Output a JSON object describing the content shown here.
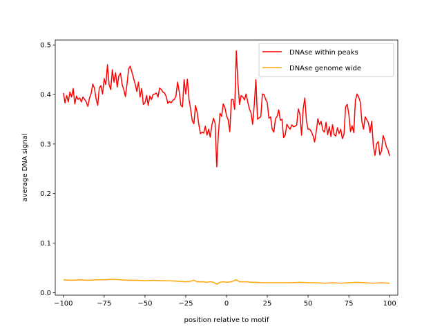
{
  "chart_data": {
    "type": "line",
    "title": "",
    "xlabel": "position relative to motif",
    "ylabel": "average DNA signal",
    "xlim": [
      -105,
      105
    ],
    "ylim": [
      -0.005,
      0.51
    ],
    "xticks": [
      -100,
      -75,
      -50,
      -25,
      0,
      25,
      50,
      75,
      100
    ],
    "yticks": [
      0.0,
      0.1,
      0.2,
      0.3,
      0.4,
      0.5
    ],
    "xtick_labels": [
      "−100",
      "−75",
      "−50",
      "−25",
      "0",
      "25",
      "50",
      "75",
      "100"
    ],
    "ytick_labels": [
      "0.0",
      "0.1",
      "0.2",
      "0.3",
      "0.4",
      "0.5"
    ],
    "grid": false,
    "legend_position": "top-right",
    "series": [
      {
        "name": "DNAse within peaks",
        "color": "#ff0000",
        "points": [
          [
            -100,
            0.403
          ],
          [
            -99,
            0.383
          ],
          [
            -98,
            0.398
          ],
          [
            -97,
            0.385
          ],
          [
            -96,
            0.405
          ],
          [
            -95,
            0.395
          ],
          [
            -94,
            0.412
          ],
          [
            -93,
            0.381
          ],
          [
            -92,
            0.397
          ],
          [
            -91,
            0.39
          ],
          [
            -90,
            0.393
          ],
          [
            -89,
            0.385
          ],
          [
            -88,
            0.395
          ],
          [
            -87,
            0.39
          ],
          [
            -86,
            0.385
          ],
          [
            -85,
            0.376
          ],
          [
            -84,
            0.393
          ],
          [
            -83,
            0.402
          ],
          [
            -82,
            0.421
          ],
          [
            -81,
            0.413
          ],
          [
            -80,
            0.392
          ],
          [
            -79,
            0.378
          ],
          [
            -78,
            0.413
          ],
          [
            -77,
            0.418
          ],
          [
            -76,
            0.401
          ],
          [
            -75,
            0.432
          ],
          [
            -74,
            0.42
          ],
          [
            -73,
            0.46
          ],
          [
            -72,
            0.42
          ],
          [
            -71,
            0.41
          ],
          [
            -70,
            0.45
          ],
          [
            -69,
            0.425
          ],
          [
            -68,
            0.444
          ],
          [
            -67,
            0.415
          ],
          [
            -66,
            0.438
          ],
          [
            -65,
            0.443
          ],
          [
            -64,
            0.42
          ],
          [
            -63,
            0.41
          ],
          [
            -62,
            0.396
          ],
          [
            -61,
            0.421
          ],
          [
            -60,
            0.452
          ],
          [
            -59,
            0.457
          ],
          [
            -58,
            0.445
          ],
          [
            -57,
            0.433
          ],
          [
            -56,
            0.421
          ],
          [
            -55,
            0.406
          ],
          [
            -54,
            0.425
          ],
          [
            -53,
            0.395
          ],
          [
            -52,
            0.412
          ],
          [
            -51,
            0.38
          ],
          [
            -50,
            0.383
          ],
          [
            -49,
            0.398
          ],
          [
            -48,
            0.378
          ],
          [
            -47,
            0.397
          ],
          [
            -46,
            0.39
          ],
          [
            -45,
            0.4
          ],
          [
            -44,
            0.401
          ],
          [
            -43,
            0.403
          ],
          [
            -42,
            0.395
          ],
          [
            -41,
            0.413
          ],
          [
            -40,
            0.41
          ],
          [
            -39,
            0.405
          ],
          [
            -38,
            0.403
          ],
          [
            -37,
            0.396
          ],
          [
            -36,
            0.382
          ],
          [
            -35,
            0.386
          ],
          [
            -34,
            0.383
          ],
          [
            -33,
            0.388
          ],
          [
            -32,
            0.39
          ],
          [
            -31,
            0.397
          ],
          [
            -30,
            0.425
          ],
          [
            -29,
            0.406
          ],
          [
            -28,
            0.378
          ],
          [
            -27,
            0.375
          ],
          [
            -26,
            0.43
          ],
          [
            -25,
            0.401
          ],
          [
            -24,
            0.431
          ],
          [
            -23,
            0.39
          ],
          [
            -22,
            0.37
          ],
          [
            -21,
            0.347
          ],
          [
            -20,
            0.341
          ],
          [
            -19,
            0.378
          ],
          [
            -18,
            0.364
          ],
          [
            -17,
            0.34
          ],
          [
            -16,
            0.321
          ],
          [
            -15,
            0.324
          ],
          [
            -14,
            0.322
          ],
          [
            -13,
            0.336
          ],
          [
            -12,
            0.318
          ],
          [
            -11,
            0.33
          ],
          [
            -10,
            0.314
          ],
          [
            -9,
            0.338
          ],
          [
            -8,
            0.352
          ],
          [
            -7,
            0.342
          ],
          [
            -6,
            0.254
          ],
          [
            -5,
            0.32
          ],
          [
            -4,
            0.362
          ],
          [
            -3,
            0.356
          ],
          [
            -2,
            0.381
          ],
          [
            -1,
            0.374
          ],
          [
            0,
            0.357
          ],
          [
            1,
            0.349
          ],
          [
            2,
            0.325
          ],
          [
            3,
            0.39
          ],
          [
            4,
            0.39
          ],
          [
            5,
            0.37
          ],
          [
            6,
            0.488
          ],
          [
            7,
            0.423
          ],
          [
            8,
            0.38
          ],
          [
            9,
            0.398
          ],
          [
            10,
            0.395
          ],
          [
            11,
            0.389
          ],
          [
            12,
            0.401
          ],
          [
            13,
            0.385
          ],
          [
            14,
            0.371
          ],
          [
            15,
            0.363
          ],
          [
            16,
            0.34
          ],
          [
            17,
            0.379
          ],
          [
            18,
            0.43
          ],
          [
            19,
            0.35
          ],
          [
            20,
            0.353
          ],
          [
            21,
            0.355
          ],
          [
            22,
            0.401
          ],
          [
            23,
            0.4
          ],
          [
            24,
            0.39
          ],
          [
            25,
            0.383
          ],
          [
            26,
            0.352
          ],
          [
            27,
            0.355
          ],
          [
            28,
            0.33
          ],
          [
            29,
            0.324
          ],
          [
            30,
            0.351
          ],
          [
            31,
            0.356
          ],
          [
            32,
            0.369
          ],
          [
            33,
            0.348
          ],
          [
            34,
            0.35
          ],
          [
            35,
            0.313
          ],
          [
            36,
            0.318
          ],
          [
            37,
            0.34
          ],
          [
            38,
            0.334
          ],
          [
            39,
            0.33
          ],
          [
            40,
            0.339
          ],
          [
            41,
            0.335
          ],
          [
            42,
            0.336
          ],
          [
            43,
            0.338
          ],
          [
            44,
            0.371
          ],
          [
            45,
            0.36
          ],
          [
            46,
            0.318
          ],
          [
            47,
            0.371
          ],
          [
            48,
            0.393
          ],
          [
            49,
            0.346
          ],
          [
            50,
            0.33
          ],
          [
            51,
            0.33
          ],
          [
            52,
            0.325
          ],
          [
            53,
            0.317
          ],
          [
            54,
            0.304
          ],
          [
            55,
            0.325
          ],
          [
            56,
            0.351
          ],
          [
            57,
            0.339
          ],
          [
            58,
            0.346
          ],
          [
            59,
            0.328
          ],
          [
            60,
            0.324
          ],
          [
            61,
            0.344
          ],
          [
            62,
            0.319
          ],
          [
            63,
            0.335
          ],
          [
            64,
            0.315
          ],
          [
            65,
            0.339
          ],
          [
            66,
            0.319
          ],
          [
            67,
            0.316
          ],
          [
            68,
            0.333
          ],
          [
            69,
            0.321
          ],
          [
            70,
            0.33
          ],
          [
            71,
            0.311
          ],
          [
            72,
            0.319
          ],
          [
            73,
            0.375
          ],
          [
            74,
            0.38
          ],
          [
            75,
            0.36
          ],
          [
            76,
            0.325
          ],
          [
            77,
            0.337
          ],
          [
            78,
            0.323
          ],
          [
            79,
            0.388
          ],
          [
            80,
            0.401
          ],
          [
            81,
            0.395
          ],
          [
            82,
            0.385
          ],
          [
            83,
            0.345
          ],
          [
            84,
            0.33
          ],
          [
            85,
            0.355
          ],
          [
            86,
            0.349
          ],
          [
            87,
            0.343
          ],
          [
            88,
            0.323
          ],
          [
            89,
            0.346
          ],
          [
            90,
            0.297
          ],
          [
            91,
            0.277
          ],
          [
            92,
            0.3
          ],
          [
            93,
            0.305
          ],
          [
            94,
            0.278
          ],
          [
            95,
            0.286
          ],
          [
            96,
            0.317
          ],
          [
            97,
            0.308
          ],
          [
            98,
            0.294
          ],
          [
            99,
            0.288
          ],
          [
            100,
            0.276
          ]
        ]
      },
      {
        "name": "DNAse genome wide",
        "color": "#ffa500",
        "points": [
          [
            -100,
            0.026
          ],
          [
            -95,
            0.025
          ],
          [
            -90,
            0.026
          ],
          [
            -85,
            0.025
          ],
          [
            -80,
            0.026
          ],
          [
            -75,
            0.026
          ],
          [
            -70,
            0.027
          ],
          [
            -65,
            0.026
          ],
          [
            -60,
            0.025
          ],
          [
            -55,
            0.025
          ],
          [
            -50,
            0.024
          ],
          [
            -45,
            0.025
          ],
          [
            -40,
            0.024
          ],
          [
            -35,
            0.024
          ],
          [
            -30,
            0.023
          ],
          [
            -25,
            0.022
          ],
          [
            -22,
            0.023
          ],
          [
            -20,
            0.025
          ],
          [
            -18,
            0.022
          ],
          [
            -15,
            0.022
          ],
          [
            -12,
            0.021
          ],
          [
            -10,
            0.022
          ],
          [
            -8,
            0.021
          ],
          [
            -6,
            0.017
          ],
          [
            -4,
            0.021
          ],
          [
            -2,
            0.022
          ],
          [
            0,
            0.021
          ],
          [
            3,
            0.022
          ],
          [
            6,
            0.026
          ],
          [
            8,
            0.022
          ],
          [
            12,
            0.022
          ],
          [
            15,
            0.021
          ],
          [
            18,
            0.021
          ],
          [
            22,
            0.02
          ],
          [
            26,
            0.02
          ],
          [
            30,
            0.02
          ],
          [
            35,
            0.02
          ],
          [
            40,
            0.02
          ],
          [
            45,
            0.021
          ],
          [
            50,
            0.02
          ],
          [
            55,
            0.02
          ],
          [
            60,
            0.019
          ],
          [
            65,
            0.02
          ],
          [
            70,
            0.019
          ],
          [
            75,
            0.02
          ],
          [
            80,
            0.021
          ],
          [
            85,
            0.02
          ],
          [
            90,
            0.019
          ],
          [
            95,
            0.02
          ],
          [
            100,
            0.019
          ]
        ]
      }
    ]
  }
}
